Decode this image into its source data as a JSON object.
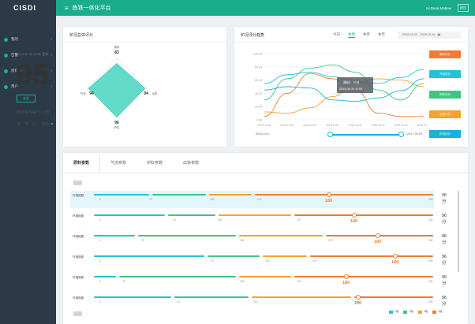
{
  "app": {
    "logo": "CISDI",
    "title": "炼铁一体化平台",
    "greeting": "Hi,Dava Mattew",
    "logout": "退出"
  },
  "sidebar": {
    "items": [
      {
        "label": "我的"
      },
      {
        "label": "告警"
      },
      {
        "label": "原料场"
      },
      {
        "label": "用户"
      }
    ]
  },
  "overview": {
    "title": "炉况总体评分",
    "timestamp": "2018.08.30 14:00 更新",
    "score": "95",
    "check_label": "查看",
    "avg_label": "昨日平均得分：",
    "avg_value": "97",
    "ratio_label": "日　环　比：",
    "ratio_value": "11%",
    "radar": {
      "axes": [
        {
          "label": "原料",
          "value": "83"
        },
        {
          "label": "出铁",
          "value": "94"
        },
        {
          "label": "炉缸",
          "value": "96"
        },
        {
          "label": "气流",
          "value": "94"
        }
      ]
    }
  },
  "trend": {
    "title": "炉况评分趋势",
    "tabs": [
      "今日",
      "本周",
      "本月",
      "本年"
    ],
    "active_tab": 1,
    "date_range": "2015.10.02 - 2015.10.10",
    "buttons": [
      {
        "label": "原料评分",
        "color": "#f07b33"
      },
      {
        "label": "气流评分",
        "color": "#23c3d6"
      },
      {
        "label": "炉缸评分",
        "color": "#3dc583"
      },
      {
        "label": "出铁评分",
        "color": "#f3a32e"
      },
      {
        "label": "炉况评分",
        "color": "#19b2d8"
      }
    ],
    "slider_start": "2015.10.0",
    "slider_end": "2017.00.00",
    "tooltip": {
      "line1": "原料：70分",
      "line2": "2018.08.30 11:09"
    }
  },
  "chart_data": {
    "type": "line",
    "x": [
      "2015.10.02",
      "2015.10.02",
      "2015.10.02",
      "2015.10.02",
      "2015.10.02",
      "2015.10.02",
      "2015.10.02",
      "2015.10.02"
    ],
    "ylim": [
      0,
      100
    ],
    "yticks": [
      "100.00",
      "80.00",
      "60.00",
      "40.00",
      "20.00",
      "0.00"
    ],
    "series": [
      {
        "color": "#f07b33",
        "values": [
          5,
          40,
          70,
          62,
          45,
          10,
          5,
          5
        ]
      },
      {
        "color": "#23c3d6",
        "values": [
          55,
          68,
          72,
          65,
          57,
          55,
          64,
          76
        ]
      },
      {
        "color": "#3dc583",
        "values": [
          30,
          62,
          78,
          83,
          72,
          45,
          30,
          55
        ]
      },
      {
        "color": "#f3a32e",
        "values": [
          12,
          10,
          18,
          35,
          55,
          62,
          60,
          50
        ]
      },
      {
        "color": "#19b2d8",
        "values": [
          45,
          50,
          48,
          30,
          28,
          33,
          44,
          62
        ]
      }
    ]
  },
  "details": {
    "tabs": [
      "原料参数",
      "气流参数",
      "炉缸参数",
      "出铁参数"
    ],
    "active_tab": 0,
    "legend": [
      {
        "label": "1级",
        "color": "#23c3d6"
      },
      {
        "label": "2级",
        "color": "#3dc583"
      },
      {
        "label": "3级",
        "color": "#f3a32e"
      },
      {
        "label": "4级",
        "color": "#f07b33"
      }
    ],
    "rows": [
      {
        "label": "环境指数",
        "ticks": [
          "0",
          "70",
          "100",
          "170",
          "200"
        ],
        "value": "180",
        "score": "96分"
      },
      {
        "label": "环境指数",
        "ticks": [
          "0",
          "70",
          "100",
          "170",
          "200"
        ],
        "value": "180",
        "score": "96分"
      },
      {
        "label": "环境指数",
        "ticks": [
          "0",
          "70",
          "100",
          "170",
          "200"
        ],
        "value": "180",
        "score": "96分"
      },
      {
        "label": "环境指数",
        "ticks": [
          "0",
          "70",
          "100",
          "170",
          "200"
        ],
        "value": "180",
        "score": "96分"
      },
      {
        "label": "环境指数",
        "ticks": [
          "0",
          "70",
          "100",
          "170",
          "200"
        ],
        "value": "180",
        "score": "96分"
      },
      {
        "label": "环境指数",
        "ticks": [
          "0",
          "70",
          "100",
          "170",
          "200"
        ],
        "value": "180",
        "score": "96分"
      }
    ]
  }
}
